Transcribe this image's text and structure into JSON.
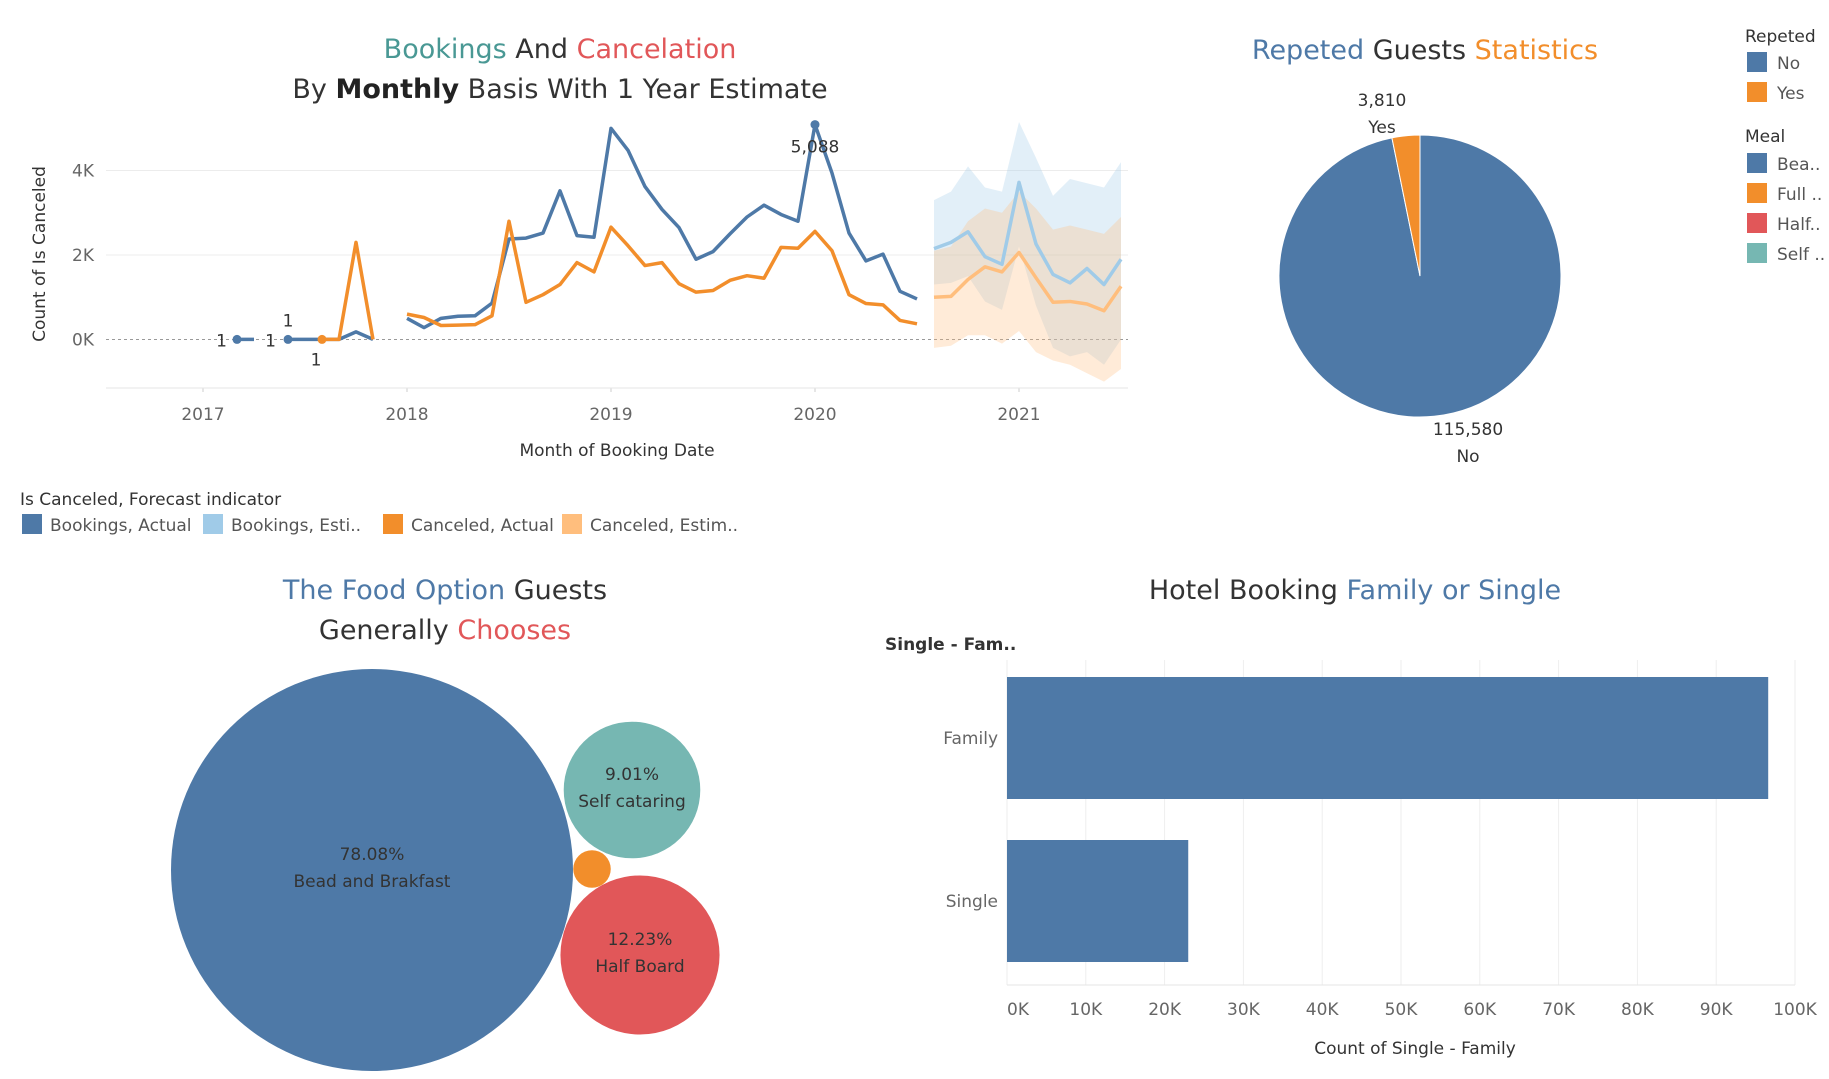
{
  "colors": {
    "blue": "#4e79a7",
    "light_blue": "#a0cbe8",
    "orange": "#f28e2b",
    "light_orange": "#ffbe7d",
    "red": "#e15759",
    "teal": "#76b7b2",
    "title_teal": "#499894",
    "text": "#333333"
  },
  "titles": {
    "bookings_word": "Bookings",
    "and_word": " And ",
    "cancelation_word": "Cancelation",
    "subtitle_by": "By ",
    "subtitle_monthly": "Monthly",
    "subtitle_rest": " Basis With 1 Year Estimate",
    "repeated_word": "Repeted",
    "guests_word": " Guests ",
    "statistics_word": "Statistics",
    "food_1": "The Food Option",
    "food_2": " Guests",
    "food_3": "Generally ",
    "food_4": "Chooses",
    "hotel_1": "Hotel Booking ",
    "hotel_2": "Family or Single"
  },
  "legend_repeated": {
    "title": "Repeted",
    "items": [
      {
        "label": "No",
        "color": "#4e79a7"
      },
      {
        "label": "Yes",
        "color": "#f28e2b"
      }
    ]
  },
  "legend_meal": {
    "title": "Meal",
    "items": [
      {
        "label": "Bea..",
        "color": "#4e79a7"
      },
      {
        "label": "Full ..",
        "color": "#f28e2b"
      },
      {
        "label": "Half..",
        "color": "#e15759"
      },
      {
        "label": "Self ..",
        "color": "#76b7b2"
      }
    ]
  },
  "legend_forecast": {
    "title": "Is Canceled, Forecast indicator",
    "items": [
      {
        "label": "Bookings, Actual",
        "color": "#4e79a7"
      },
      {
        "label": "Bookings, Esti..",
        "color": "#a0cbe8"
      },
      {
        "label": "Canceled, Actual",
        "color": "#f28e2b"
      },
      {
        "label": "Canceled, Estim..",
        "color": "#ffbe7d"
      }
    ]
  },
  "chart_data": [
    {
      "type": "line",
      "xlabel": "Month of Booking Date",
      "ylabel": "Count of Is Canceled",
      "x_ticks": [
        "2017",
        "2018",
        "2019",
        "2020",
        "2021"
      ],
      "y_ticks": [
        "0K",
        "2K",
        "4K"
      ],
      "ylim": [
        -1150,
        5150
      ],
      "series": [
        {
          "name": "Bookings, Actual",
          "segments": [
            [
              [
                "2017-03",
                1
              ],
              [
                "2017-04",
                1
              ]
            ],
            [
              [
                "2017-06",
                1
              ],
              [
                "2017-07",
                1
              ],
              [
                "2017-08",
                1
              ],
              [
                "2017-09",
                1
              ],
              [
                "2017-10",
                180
              ],
              [
                "2017-11",
                1
              ]
            ],
            [
              [
                "2018-01",
                500
              ],
              [
                "2018-02",
                280
              ],
              [
                "2018-03",
                500
              ],
              [
                "2018-04",
                550
              ],
              [
                "2018-05",
                560
              ],
              [
                "2018-06",
                860
              ],
              [
                "2018-07",
                2380
              ],
              [
                "2018-08",
                2400
              ],
              [
                "2018-09",
                2520
              ],
              [
                "2018-10",
                3520
              ],
              [
                "2018-11",
                2460
              ],
              [
                "2018-12",
                2420
              ],
              [
                "2019-01",
                5000
              ],
              [
                "2019-02",
                4480
              ],
              [
                "2019-03",
                3620
              ],
              [
                "2019-04",
                3080
              ],
              [
                "2019-05",
                2650
              ],
              [
                "2019-06",
                1900
              ],
              [
                "2019-07",
                2080
              ],
              [
                "2019-08",
                2500
              ],
              [
                "2019-09",
                2900
              ],
              [
                "2019-10",
                3180
              ],
              [
                "2019-11",
                2960
              ],
              [
                "2019-12",
                2800
              ],
              [
                "2020-01",
                5088
              ],
              [
                "2020-02",
                3940
              ],
              [
                "2020-03",
                2520
              ],
              [
                "2020-04",
                1860
              ],
              [
                "2020-05",
                2020
              ],
              [
                "2020-06",
                1140
              ],
              [
                "2020-07",
                960
              ]
            ]
          ]
        },
        {
          "name": "Bookings, Esti..",
          "segments": [
            [
              [
                "2020-08",
                2150
              ],
              [
                "2020-09",
                2300
              ],
              [
                "2020-10",
                2550
              ],
              [
                "2020-11",
                1960
              ],
              [
                "2020-12",
                1780
              ],
              [
                "2021-01",
                3720
              ],
              [
                "2021-02",
                2260
              ],
              [
                "2021-03",
                1540
              ],
              [
                "2021-04",
                1340
              ],
              [
                "2021-05",
                1680
              ],
              [
                "2021-06",
                1300
              ],
              [
                "2021-07",
                1900
              ]
            ]
          ]
        },
        {
          "name": "Canceled, Actual",
          "segments": [
            [
              [
                "2017-08",
                1
              ],
              [
                "2017-09",
                1
              ],
              [
                "2017-10",
                2300
              ],
              [
                "2017-11",
                1
              ]
            ],
            [
              [
                "2018-01",
                600
              ],
              [
                "2018-02",
                520
              ],
              [
                "2018-03",
                330
              ],
              [
                "2018-04",
                340
              ],
              [
                "2018-05",
                350
              ],
              [
                "2018-06",
                560
              ],
              [
                "2018-07",
                2800
              ],
              [
                "2018-08",
                880
              ],
              [
                "2018-09",
                1060
              ],
              [
                "2018-10",
                1300
              ],
              [
                "2018-11",
                1820
              ],
              [
                "2018-12",
                1600
              ],
              [
                "2019-01",
                2660
              ],
              [
                "2019-02",
                2220
              ],
              [
                "2019-03",
                1750
              ],
              [
                "2019-04",
                1820
              ],
              [
                "2019-05",
                1320
              ],
              [
                "2019-06",
                1120
              ],
              [
                "2019-07",
                1160
              ],
              [
                "2019-08",
                1400
              ],
              [
                "2019-09",
                1510
              ],
              [
                "2019-10",
                1450
              ],
              [
                "2019-11",
                2180
              ],
              [
                "2019-12",
                2160
              ],
              [
                "2020-01",
                2560
              ],
              [
                "2020-02",
                2100
              ],
              [
                "2020-03",
                1060
              ],
              [
                "2020-04",
                850
              ],
              [
                "2020-05",
                820
              ],
              [
                "2020-06",
                450
              ],
              [
                "2020-07",
                370
              ]
            ]
          ]
        },
        {
          "name": "Canceled, Estim..",
          "segments": [
            [
              [
                "2020-08",
                1000
              ],
              [
                "2020-09",
                1020
              ],
              [
                "2020-10",
                1420
              ],
              [
                "2020-11",
                1720
              ],
              [
                "2020-12",
                1600
              ],
              [
                "2021-01",
                2060
              ],
              [
                "2021-02",
                1460
              ],
              [
                "2021-03",
                880
              ],
              [
                "2021-04",
                900
              ],
              [
                "2021-05",
                840
              ],
              [
                "2021-06",
                680
              ],
              [
                "2021-07",
                1260
              ]
            ]
          ]
        }
      ],
      "bands": [
        {
          "series": "Bookings, Esti..",
          "low": [
            1300,
            1340,
            1500,
            900,
            700,
            2200,
            800,
            -200,
            -400,
            -300,
            -600,
            0
          ],
          "high": [
            3300,
            3500,
            4100,
            3600,
            3500,
            5200,
            4300,
            3400,
            3800,
            3700,
            3600,
            4200
          ]
        },
        {
          "series": "Canceled, Estim..",
          "low": [
            -200,
            -150,
            100,
            100,
            -100,
            200,
            -300,
            -500,
            -600,
            -800,
            -1000,
            -700
          ],
          "high": [
            2100,
            2200,
            2800,
            3100,
            3000,
            3500,
            3100,
            2600,
            2700,
            2600,
            2500,
            2900
          ]
        }
      ],
      "annotations": [
        {
          "text": "5,088",
          "x": "2020-01",
          "y": 5088
        },
        {
          "text": "1",
          "x": "2017-03",
          "y": 1
        },
        {
          "text": "1",
          "x": "2017-06",
          "y": 1
        },
        {
          "text": "1",
          "x": "2017-06",
          "y": 1
        },
        {
          "text": "1",
          "x": "2017-08",
          "y": 1
        }
      ],
      "reference_line": 0
    },
    {
      "type": "pie",
      "title": "Repeted Guests Statistics",
      "slices": [
        {
          "label": "No",
          "value": 115580,
          "value_label": "115,580",
          "color": "#4e79a7"
        },
        {
          "label": "Yes",
          "value": 3810,
          "value_label": "3,810",
          "color": "#f28e2b"
        }
      ]
    },
    {
      "type": "bubble",
      "title": "The Food Option Guests Generally Chooses",
      "bubbles": [
        {
          "label": "Bead and Brakfast",
          "percent": "78.08%",
          "value": 78.08,
          "color": "#4e79a7"
        },
        {
          "label": "Half Board",
          "percent": "12.23%",
          "value": 12.23,
          "color": "#e15759"
        },
        {
          "label": "Self cataring",
          "percent": "9.01%",
          "value": 9.01,
          "color": "#76b7b2"
        },
        {
          "label": "",
          "percent": "",
          "value": 0.68,
          "color": "#f28e2b"
        }
      ]
    },
    {
      "type": "bar",
      "title": "Hotel Booking Family or Single",
      "row_header": "Single - Fam..",
      "categories": [
        "Family",
        "Single"
      ],
      "values": [
        96600,
        23000
      ],
      "xlabel": "Count of Single - Family",
      "x_ticks": [
        "0K",
        "10K",
        "20K",
        "30K",
        "40K",
        "50K",
        "60K",
        "70K",
        "80K",
        "90K",
        "100K"
      ],
      "xlim": [
        0,
        100000
      ]
    }
  ]
}
